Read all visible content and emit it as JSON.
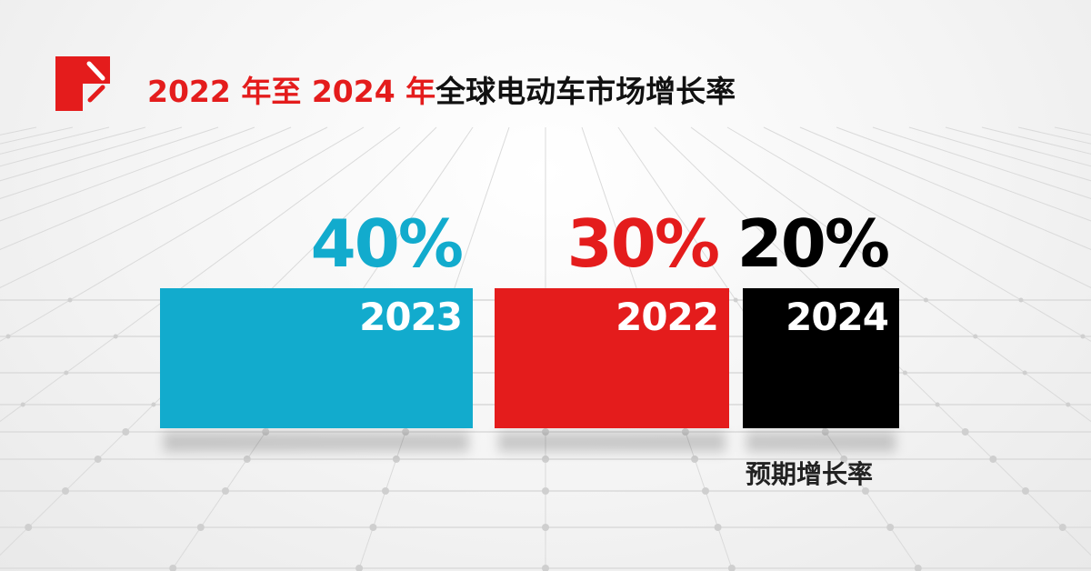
{
  "title": {
    "red_part": "2022 年至 2024 年",
    "black_part": "全球电动车市场增长率"
  },
  "logo": {
    "color": "#e41c1c"
  },
  "chart_data": {
    "type": "bar",
    "orientation": "horizontal-width",
    "categories": [
      "2023",
      "2022",
      "2024"
    ],
    "values": [
      40,
      30,
      20
    ],
    "labels": [
      "40%",
      "30%",
      "20%"
    ],
    "colors": [
      "#12abcd",
      "#e41c1c",
      "#000000"
    ],
    "unit": "%",
    "annotation": "预期增长率",
    "grid": false
  }
}
